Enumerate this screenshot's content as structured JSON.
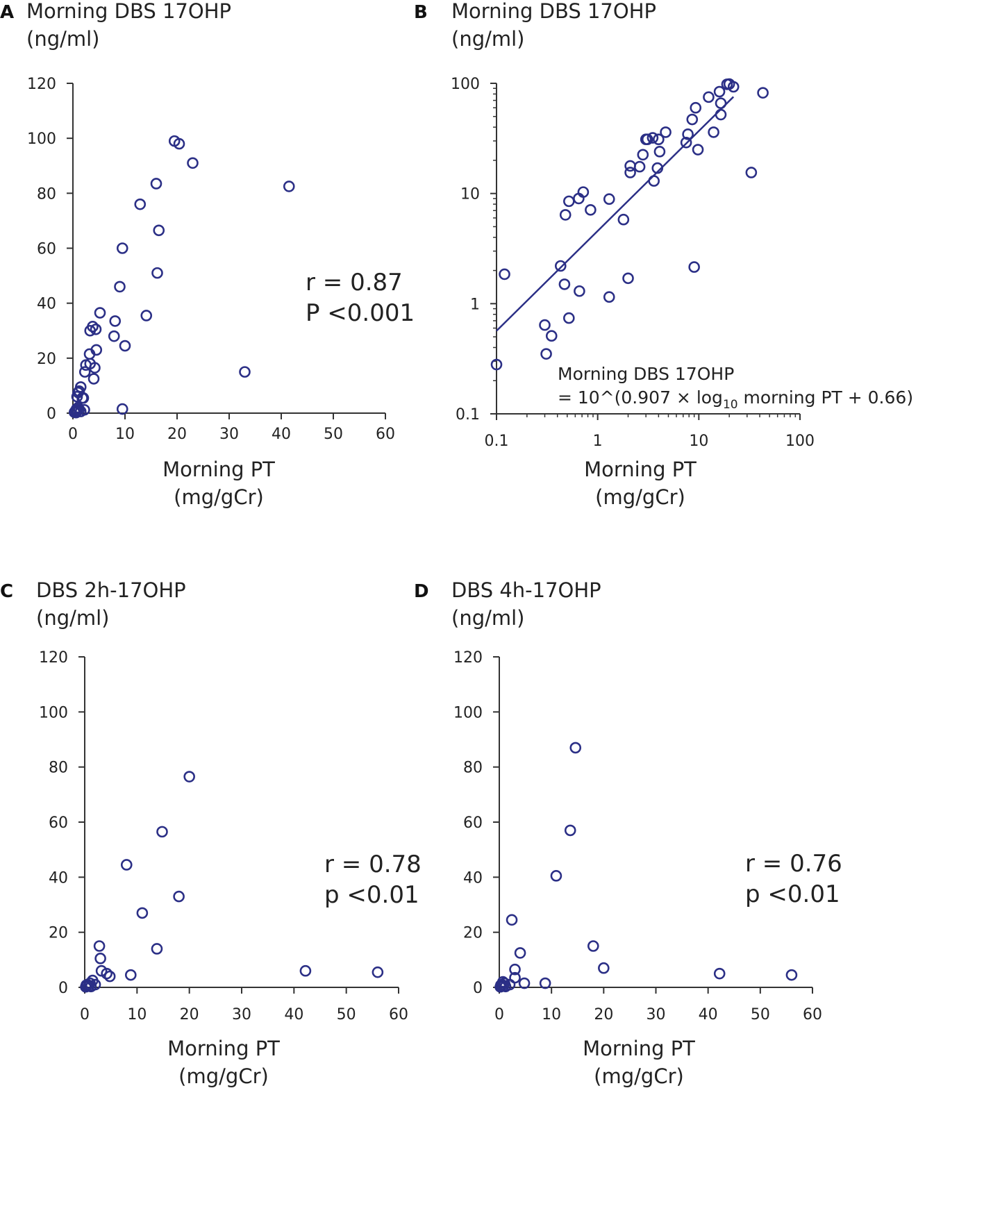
{
  "chart_data": [
    {
      "panel": "A",
      "type": "scatter",
      "title": "Morning DBS 17OHP",
      "ylabel_unit": "(ng/ml)",
      "xlabel": "Morning PT",
      "xlabel_unit": "(mg/gCr)",
      "xlim": [
        0,
        60
      ],
      "ylim": [
        0,
        120
      ],
      "xticks": [
        0,
        10,
        20,
        30,
        40,
        50,
        60
      ],
      "yticks": [
        0,
        20,
        40,
        60,
        80,
        100,
        120
      ],
      "stats": [
        "r = 0.87",
        "P <0.001"
      ],
      "points": [
        [
          0.3,
          0.3
        ],
        [
          0.5,
          0.8
        ],
        [
          0.7,
          1.5
        ],
        [
          1.0,
          2.0
        ],
        [
          0.4,
          0.5
        ],
        [
          0.8,
          1.0
        ],
        [
          1.2,
          1.3
        ],
        [
          0.6,
          0.2
        ],
        [
          1.5,
          0.6
        ],
        [
          2.2,
          1.2
        ],
        [
          1.8,
          5.5
        ],
        [
          0.8,
          6.0
        ],
        [
          1.2,
          8.0
        ],
        [
          1.5,
          9.5
        ],
        [
          1.0,
          7.5
        ],
        [
          2.0,
          5.5
        ],
        [
          2.3,
          15.0
        ],
        [
          2.5,
          17.5
        ],
        [
          3.3,
          18.0
        ],
        [
          3.2,
          21.5
        ],
        [
          4.2,
          16.5
        ],
        [
          4.0,
          12.5
        ],
        [
          4.5,
          23.0
        ],
        [
          3.3,
          30.0
        ],
        [
          3.8,
          31.5
        ],
        [
          4.4,
          30.5
        ],
        [
          5.2,
          36.5
        ],
        [
          8.1,
          33.5
        ],
        [
          7.9,
          28.0
        ],
        [
          10.0,
          24.5
        ],
        [
          9.0,
          46.0
        ],
        [
          9.5,
          60.0
        ],
        [
          14.1,
          35.5
        ],
        [
          12.9,
          76.0
        ],
        [
          16.2,
          51.0
        ],
        [
          16.5,
          66.5
        ],
        [
          16.0,
          83.5
        ],
        [
          19.5,
          99.0
        ],
        [
          20.4,
          98.0
        ],
        [
          23.0,
          91.0
        ],
        [
          9.5,
          1.5
        ],
        [
          33.0,
          15.0
        ],
        [
          41.5,
          82.5
        ]
      ]
    },
    {
      "panel": "B",
      "type": "scatter",
      "scale": "log-log",
      "title": "Morning DBS 17OHP",
      "ylabel_unit": "(ng/ml)",
      "xlabel": "Morning PT",
      "xlabel_unit": "(mg/gCr)",
      "xlim": [
        0.1,
        100
      ],
      "ylim": [
        0.1,
        100
      ],
      "xticks": [
        0.1,
        1,
        10,
        100
      ],
      "xtick_labels": [
        "0.1",
        "1",
        "10",
        "100"
      ],
      "yticks": [
        0.1,
        1,
        10,
        100
      ],
      "ytick_labels": [
        "0.1",
        "1",
        "10",
        "100"
      ],
      "equation_line1": "Morning DBS 17OHP",
      "equation_line2_prefix": "= 10^(0.907 × log",
      "equation_line2_sub": "10",
      "equation_line2_suffix": " morning PT + 0.66)",
      "fit": {
        "slope": 0.907,
        "intercept": 0.66,
        "x_range": [
          0.1,
          22
        ]
      },
      "points": [
        [
          0.1,
          0.28
        ],
        [
          0.12,
          1.85
        ],
        [
          0.3,
          0.64
        ],
        [
          0.31,
          0.35
        ],
        [
          0.35,
          0.51
        ],
        [
          0.43,
          2.2
        ],
        [
          0.47,
          1.5
        ],
        [
          0.52,
          0.74
        ],
        [
          0.48,
          6.4
        ],
        [
          0.52,
          8.5
        ],
        [
          0.65,
          9.0
        ],
        [
          0.72,
          10.3
        ],
        [
          0.85,
          7.1
        ],
        [
          0.66,
          1.3
        ],
        [
          1.3,
          1.15
        ],
        [
          1.3,
          8.9
        ],
        [
          1.8,
          5.8
        ],
        [
          2.0,
          1.7
        ],
        [
          2.1,
          17.8
        ],
        [
          2.1,
          15.5
        ],
        [
          2.6,
          17.5
        ],
        [
          2.8,
          22.5
        ],
        [
          3.1,
          31.0
        ],
        [
          3.0,
          31.0
        ],
        [
          3.5,
          32.0
        ],
        [
          3.6,
          13.0
        ],
        [
          4.0,
          31.0
        ],
        [
          4.1,
          24.0
        ],
        [
          3.9,
          17.0
        ],
        [
          4.7,
          36.0
        ],
        [
          7.5,
          29.0
        ],
        [
          7.8,
          34.5
        ],
        [
          8.6,
          47.0
        ],
        [
          9.3,
          60.0
        ],
        [
          9.8,
          25.0
        ],
        [
          9.0,
          2.15
        ],
        [
          12.5,
          75.0
        ],
        [
          14.0,
          36.0
        ],
        [
          16.0,
          84.0
        ],
        [
          16.5,
          66.0
        ],
        [
          16.5,
          52.0
        ],
        [
          19.0,
          98.0
        ],
        [
          20.0,
          98.5
        ],
        [
          22.0,
          93.0
        ],
        [
          33.0,
          15.5
        ],
        [
          43.0,
          82.0
        ]
      ]
    },
    {
      "panel": "C",
      "type": "scatter",
      "title": "DBS 2h-17OHP",
      "ylabel_unit": "(ng/ml)",
      "xlabel": "Morning PT",
      "xlabel_unit": "(mg/gCr)",
      "xlim": [
        0,
        60
      ],
      "ylim": [
        0,
        120
      ],
      "xticks": [
        0,
        10,
        20,
        30,
        40,
        50,
        60
      ],
      "yticks": [
        0,
        20,
        40,
        60,
        80,
        100,
        120
      ],
      "stats": [
        "r = 0.78",
        "p <0.01"
      ],
      "points": [
        [
          0.2,
          0.2
        ],
        [
          0.5,
          1.0
        ],
        [
          0.8,
          0.5
        ],
        [
          1.0,
          1.5
        ],
        [
          1.5,
          2.5
        ],
        [
          0.3,
          0.8
        ],
        [
          1.2,
          0.3
        ],
        [
          2.0,
          1.0
        ],
        [
          2.8,
          15.0
        ],
        [
          3.0,
          10.5
        ],
        [
          3.2,
          6.0
        ],
        [
          4.2,
          5.0
        ],
        [
          4.8,
          4.0
        ],
        [
          8.0,
          44.5
        ],
        [
          8.8,
          4.5
        ],
        [
          11.0,
          27.0
        ],
        [
          13.8,
          14.0
        ],
        [
          14.8,
          56.5
        ],
        [
          18.0,
          33.0
        ],
        [
          20.0,
          76.5
        ],
        [
          42.2,
          6.0
        ],
        [
          56.0,
          5.5
        ]
      ]
    },
    {
      "panel": "D",
      "type": "scatter",
      "title": "DBS 4h-17OHP",
      "ylabel_unit": "(ng/ml)",
      "xlabel": "Morning PT",
      "xlabel_unit": "(mg/gCr)",
      "xlim": [
        0,
        60
      ],
      "ylim": [
        0,
        120
      ],
      "xticks": [
        0,
        10,
        20,
        30,
        40,
        50,
        60
      ],
      "yticks": [
        0,
        20,
        40,
        60,
        80,
        100,
        120
      ],
      "stats": [
        "r = 0.76",
        "p <0.01"
      ],
      "points": [
        [
          0.2,
          0.2
        ],
        [
          0.5,
          1.0
        ],
        [
          0.8,
          0.5
        ],
        [
          1.0,
          1.5
        ],
        [
          0.3,
          0.8
        ],
        [
          1.2,
          0.3
        ],
        [
          0.7,
          2.0
        ],
        [
          2.0,
          1.0
        ],
        [
          2.4,
          24.5
        ],
        [
          3.0,
          6.5
        ],
        [
          3.0,
          3.5
        ],
        [
          4.0,
          12.5
        ],
        [
          4.8,
          1.5
        ],
        [
          8.8,
          1.5
        ],
        [
          10.9,
          40.5
        ],
        [
          13.6,
          57.0
        ],
        [
          14.6,
          87.0
        ],
        [
          18.0,
          15.0
        ],
        [
          20.0,
          7.0
        ],
        [
          42.2,
          5.0
        ],
        [
          56.0,
          4.5
        ]
      ]
    }
  ]
}
